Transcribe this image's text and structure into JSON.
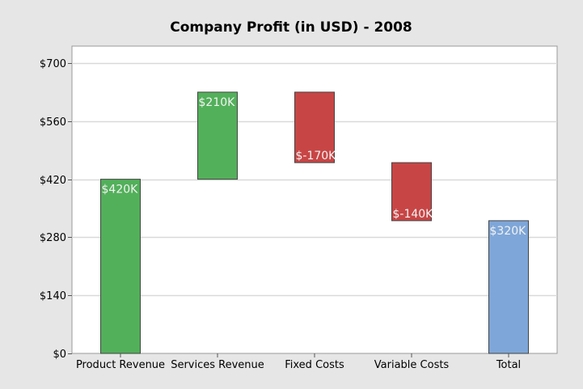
{
  "chart_data": {
    "type": "waterfall",
    "title": "Company Profit (in USD) - 2008",
    "xlabel": "",
    "ylabel": "",
    "categories": [
      "Product Revenue",
      "Services Revenue",
      "Fixed Costs",
      "Variable Costs",
      "Total"
    ],
    "values": [
      420,
      210,
      -170,
      -140,
      320
    ],
    "bars": [
      {
        "start": 0,
        "end": 420,
        "kind": "increase"
      },
      {
        "start": 420,
        "end": 630,
        "kind": "increase"
      },
      {
        "start": 630,
        "end": 460,
        "kind": "decrease"
      },
      {
        "start": 460,
        "end": 320,
        "kind": "decrease"
      },
      {
        "start": 0,
        "end": 320,
        "kind": "total"
      }
    ],
    "data_labels": [
      "$420K",
      "$210K",
      "$-170K",
      "$-140K",
      "$320K"
    ],
    "yticks": [
      0,
      140,
      280,
      420,
      560,
      700
    ],
    "ytick_labels": [
      "$0",
      "$140",
      "$280",
      "$420",
      "$560",
      "$700"
    ],
    "ylim": [
      0,
      741
    ],
    "grid": true,
    "legend": "none",
    "colors": {
      "increase": "#52b05a",
      "decrease": "#c84545",
      "total": "#7ea6d8"
    }
  }
}
